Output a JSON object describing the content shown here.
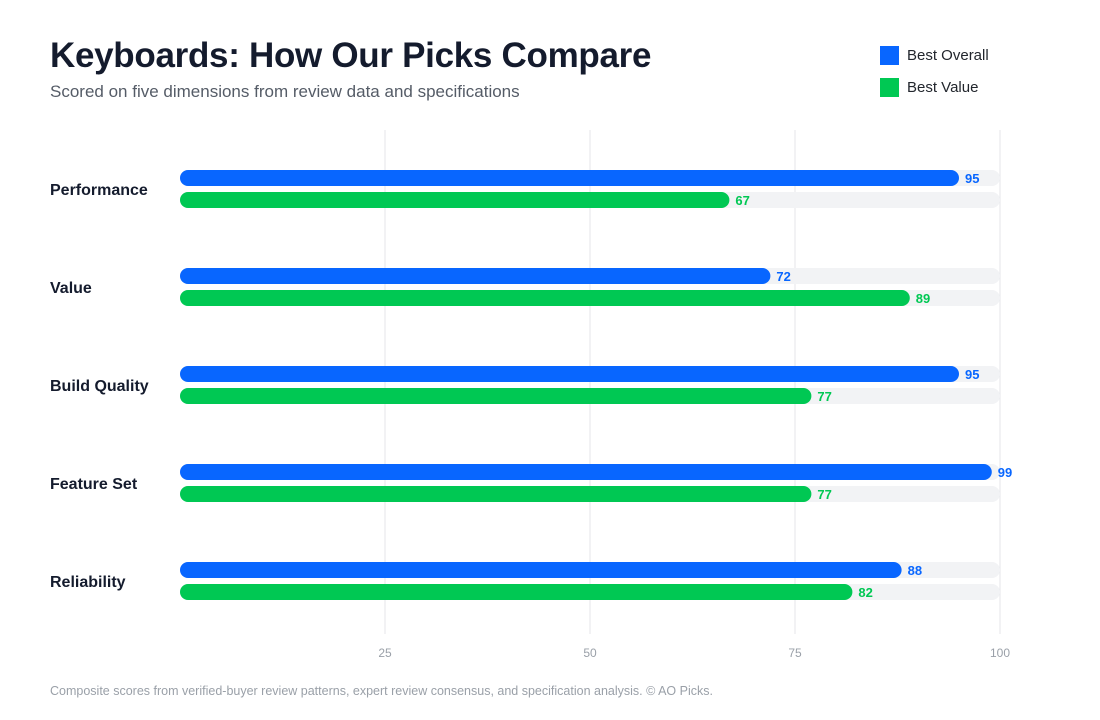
{
  "header": {
    "title": "Keyboards: How Our Picks Compare",
    "subtitle": "Scored on five dimensions from review data and specifications"
  },
  "legend": [
    {
      "label": "Best Overall",
      "color": "#0866ff"
    },
    {
      "label": "Best Value",
      "color": "#00c853"
    }
  ],
  "footnote": "Composite scores from verified-buyer review patterns, expert review consensus, and specification analysis. © AO Picks.",
  "chart_data": {
    "type": "bar",
    "orientation": "horizontal",
    "categories": [
      "Performance",
      "Value",
      "Build Quality",
      "Feature Set",
      "Reliability"
    ],
    "series": [
      {
        "name": "Best Overall",
        "color": "#0866ff",
        "values": [
          95,
          72,
          95,
          99,
          88
        ]
      },
      {
        "name": "Best Value",
        "color": "#00c853",
        "values": [
          67,
          89,
          77,
          77,
          82
        ]
      }
    ],
    "xlim": [
      0,
      100
    ],
    "xticks": [
      25,
      50,
      75,
      100
    ],
    "grid": true,
    "data_labels": true,
    "legend_position": "top-right",
    "track_color": "#f2f3f5",
    "grid_color": "#e4e6ea"
  }
}
